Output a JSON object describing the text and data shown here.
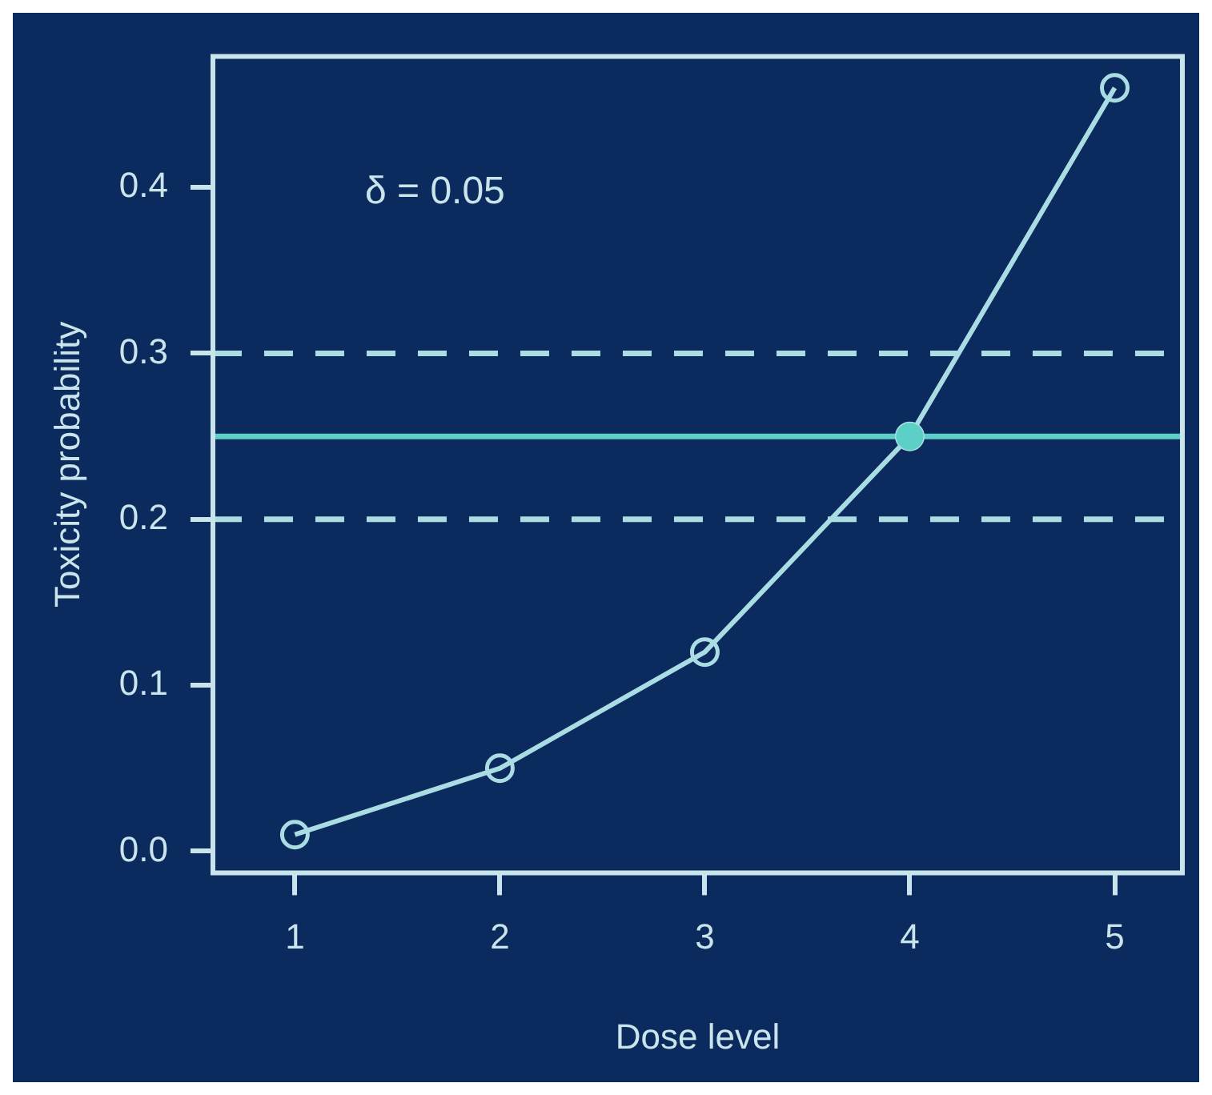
{
  "chart_data": {
    "type": "line",
    "xlabel": "Dose level",
    "ylabel": "Toxicity probability",
    "x": [
      1,
      2,
      3,
      4,
      5
    ],
    "xlim": [
      0.6,
      5.33
    ],
    "xticks": [
      1,
      2,
      3,
      4,
      5
    ],
    "ylim": [
      -0.013,
      0.479
    ],
    "yticks": [
      {
        "value": 0,
        "label": "0.0"
      },
      0.1,
      0.2,
      0.3,
      0.4
    ],
    "grid": false,
    "legend": false,
    "marker": "circle",
    "line_style": "solid",
    "series": [
      {
        "color": "#a9dde3",
        "values": [
          0.01,
          0.05,
          0.12,
          0.25,
          0.46
        ]
      },
      {
        "type": "scatter",
        "color": "#5ccfc6",
        "x": [
          4
        ],
        "values": [
          0.25
        ]
      }
    ],
    "ref_lines": [
      {
        "axis": "y",
        "value": 0.3,
        "line_style": "dashed",
        "color": "#a9dde3"
      },
      {
        "axis": "y",
        "value": 0.25,
        "line_style": "solid",
        "color": "#5ccfc6"
      },
      {
        "axis": "y",
        "value": 0.2,
        "line_style": "dashed",
        "color": "#a9dde3"
      }
    ],
    "annotations": [
      "δ = 0.05"
    ]
  }
}
